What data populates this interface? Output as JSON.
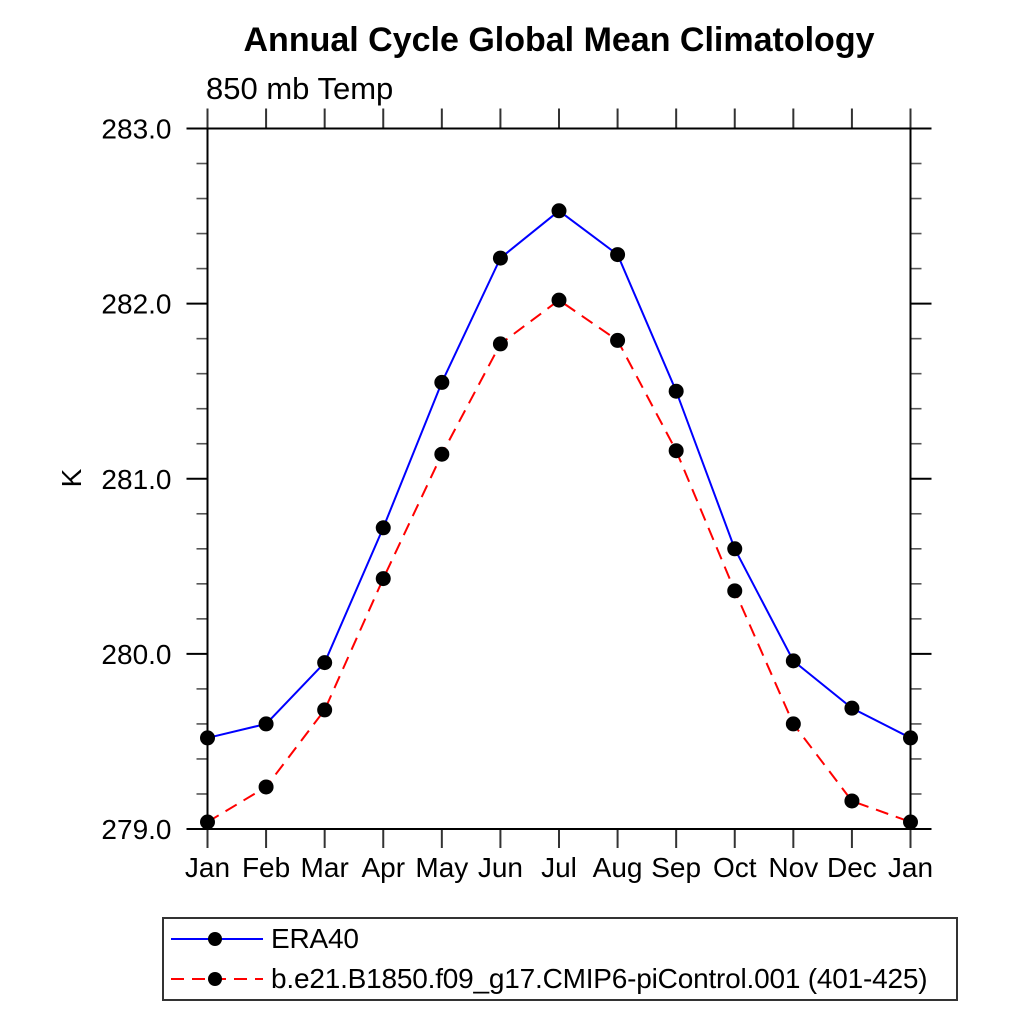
{
  "window": {
    "background": "#ffffff"
  },
  "chart_data": {
    "type": "line",
    "title": "Annual Cycle Global Mean Climatology",
    "subtitle": "850 mb Temp",
    "xlabel": "",
    "ylabel": "K",
    "x_categories": [
      "Jan",
      "Feb",
      "Mar",
      "Apr",
      "May",
      "Jun",
      "Jul",
      "Aug",
      "Sep",
      "Oct",
      "Nov",
      "Dec",
      "Jan"
    ],
    "ylim": [
      279.0,
      283.0
    ],
    "y_tick_values": [
      279.0,
      280.0,
      281.0,
      282.0,
      283.0
    ],
    "y_tick_labels": [
      "279.0",
      "280.0",
      "281.0",
      "282.0",
      "283.0"
    ],
    "y_minor_interval": 0.2,
    "grid": false,
    "axis_color": "#000000",
    "tick_color": "#333333",
    "legend_position": "below-plot-left",
    "series": [
      {
        "name": "ERA40",
        "color": "#0000ff",
        "line_style": "solid",
        "marker": "filled-circle",
        "marker_color": "#000000",
        "values": [
          279.52,
          279.6,
          279.95,
          280.72,
          281.55,
          282.26,
          282.53,
          282.28,
          281.5,
          280.6,
          279.96,
          279.69,
          279.52
        ]
      },
      {
        "name": "b.e21.B1850.f09_g17.CMIP6-piControl.001 (401-425)",
        "color": "#ff0000",
        "line_style": "dashed",
        "marker": "filled-circle",
        "marker_color": "#000000",
        "values": [
          279.04,
          279.24,
          279.68,
          280.43,
          281.14,
          281.77,
          282.02,
          281.79,
          281.16,
          280.36,
          279.6,
          279.16,
          279.04
        ]
      }
    ]
  }
}
